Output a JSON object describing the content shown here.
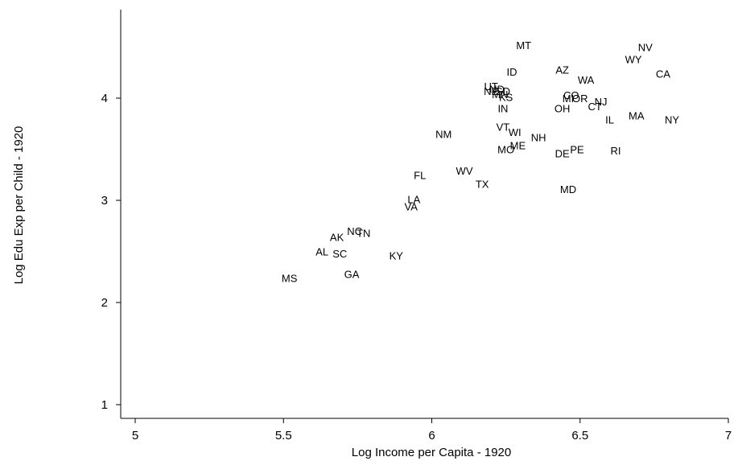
{
  "chart_data": {
    "type": "scatter",
    "title": "",
    "xlabel": "Log Income per Capita - 1920",
    "ylabel": "Log Edu Exp per Child - 1920",
    "xlim": [
      5,
      7
    ],
    "ylim": [
      1,
      4.75
    ],
    "xticks": [
      5,
      5.5,
      6,
      6.5,
      7
    ],
    "yticks": [
      1,
      2,
      3,
      4
    ],
    "xtick_labels": [
      "5",
      "5.5",
      "6",
      "6.5",
      "7"
    ],
    "ytick_labels": [
      "1",
      "2",
      "3",
      "4"
    ],
    "grid": false,
    "legend": "none",
    "marker": "state-abbreviation-label",
    "points": [
      {
        "label": "MT",
        "x": 6.31,
        "y": 4.52
      },
      {
        "label": "NV",
        "x": 6.72,
        "y": 4.5
      },
      {
        "label": "WY",
        "x": 6.68,
        "y": 4.38
      },
      {
        "label": "AZ",
        "x": 6.44,
        "y": 4.28
      },
      {
        "label": "CA",
        "x": 6.78,
        "y": 4.24
      },
      {
        "label": "ID",
        "x": 6.27,
        "y": 4.26
      },
      {
        "label": "WA",
        "x": 6.52,
        "y": 4.18
      },
      {
        "label": "UT",
        "x": 6.2,
        "y": 4.12
      },
      {
        "label": "ND",
        "x": 6.22,
        "y": 4.09
      },
      {
        "label": "NE",
        "x": 6.2,
        "y": 4.07
      },
      {
        "label": "SD",
        "x": 6.24,
        "y": 4.07
      },
      {
        "label": "MN",
        "x": 6.23,
        "y": 4.04
      },
      {
        "label": "KS",
        "x": 6.25,
        "y": 4.01
      },
      {
        "label": "CO",
        "x": 6.47,
        "y": 4.03
      },
      {
        "label": "MI",
        "x": 6.46,
        "y": 4.0
      },
      {
        "label": "OR",
        "x": 6.5,
        "y": 4.0
      },
      {
        "label": "NJ",
        "x": 6.57,
        "y": 3.97
      },
      {
        "label": "CT",
        "x": 6.55,
        "y": 3.92
      },
      {
        "label": "IN",
        "x": 6.24,
        "y": 3.9
      },
      {
        "label": "OH",
        "x": 6.44,
        "y": 3.9
      },
      {
        "label": "MA",
        "x": 6.69,
        "y": 3.83
      },
      {
        "label": "NY",
        "x": 6.81,
        "y": 3.79
      },
      {
        "label": "IL",
        "x": 6.6,
        "y": 3.79
      },
      {
        "label": "VT",
        "x": 6.24,
        "y": 3.72
      },
      {
        "label": "WI",
        "x": 6.28,
        "y": 3.67
      },
      {
        "label": "NM",
        "x": 6.04,
        "y": 3.65
      },
      {
        "label": "NH",
        "x": 6.36,
        "y": 3.62
      },
      {
        "label": "ME",
        "x": 6.29,
        "y": 3.54
      },
      {
        "label": "MO",
        "x": 6.25,
        "y": 3.5
      },
      {
        "label": "PE",
        "x": 6.49,
        "y": 3.5
      },
      {
        "label": "RI",
        "x": 6.62,
        "y": 3.49
      },
      {
        "label": "DE",
        "x": 6.44,
        "y": 3.46
      },
      {
        "label": "FL",
        "x": 5.96,
        "y": 3.25
      },
      {
        "label": "WV",
        "x": 6.11,
        "y": 3.29
      },
      {
        "label": "TX",
        "x": 6.17,
        "y": 3.16
      },
      {
        "label": "MD",
        "x": 6.46,
        "y": 3.11
      },
      {
        "label": "LA",
        "x": 5.94,
        "y": 3.01
      },
      {
        "label": "VA",
        "x": 5.93,
        "y": 2.94
      },
      {
        "label": "NC",
        "x": 5.74,
        "y": 2.7
      },
      {
        "label": "TN",
        "x": 5.77,
        "y": 2.68
      },
      {
        "label": "AK",
        "x": 5.68,
        "y": 2.64
      },
      {
        "label": "AL",
        "x": 5.63,
        "y": 2.5
      },
      {
        "label": "SC",
        "x": 5.69,
        "y": 2.48
      },
      {
        "label": "KY",
        "x": 5.88,
        "y": 2.46
      },
      {
        "label": "GA",
        "x": 5.73,
        "y": 2.28
      },
      {
        "label": "MS",
        "x": 5.52,
        "y": 2.24
      }
    ]
  }
}
